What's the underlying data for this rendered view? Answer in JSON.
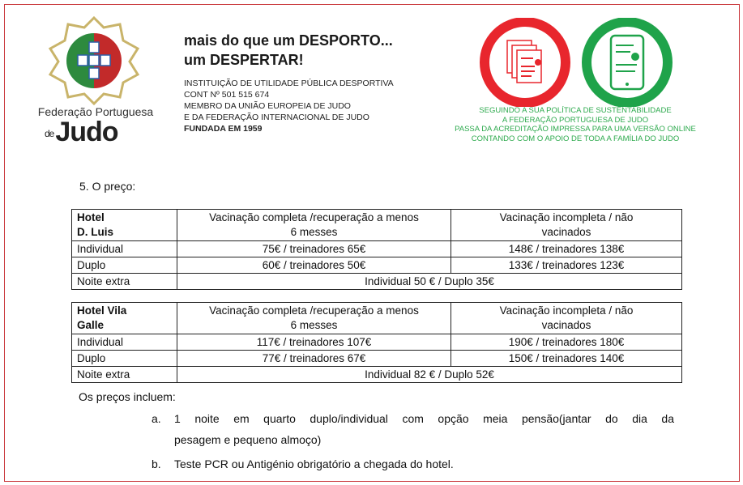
{
  "header": {
    "logo_text_1": "Federação Portuguesa",
    "logo_text_2": "de",
    "logo_text_3": "Judo",
    "slogan": [
      "mais do que um DESPORTO...",
      "um DESPERTAR!"
    ],
    "info": [
      "INSTITUIÇÃO DE UTILIDADE PÚBLICA DESPORTIVA",
      "CONT Nº 501 515 674",
      "MEMBRO DA UNIÃO EUROPEIA DE JUDO",
      "E DA FEDERAÇÃO INTERNACIONAL DE JUDO"
    ],
    "founded": "FUNDADA EM 1959",
    "sustainability": [
      "SEGUINDO A SUA POLÍTICA DE SUSTENTABILIDADE",
      "A FEDERAÇÃO PORTUGUESA DE JUDO",
      "PASSA DA ACREDITAÇÃO IMPRESSA PARA UMA VERSÃO ONLINE",
      "CONTANDO COM O APOIO DE TODA A FAMÍLIA DO JUDO"
    ],
    "colors": {
      "red": "#e8262d",
      "green": "#1fa34a"
    }
  },
  "section_heading": "5.  O preço:",
  "tables": [
    {
      "hotel": [
        "Hotel",
        "D. Luis"
      ],
      "col1": [
        "Vacinação completa /recuperação a menos",
        "6 messes"
      ],
      "col2": [
        "Vacinação incompleta / não",
        "vacinados"
      ],
      "rows": [
        [
          "Individual",
          "75€ / treinadores 65€",
          "148€ / treinadores 138€"
        ],
        [
          "Duplo",
          "60€ / treinadores 50€",
          "133€ / treinadores 123€"
        ]
      ],
      "extra": [
        "Noite extra",
        "Individual 50 € / Duplo 35€"
      ]
    },
    {
      "hotel": [
        "Hotel Vila",
        "Galle"
      ],
      "col1": [
        "Vacinação completa /recuperação a menos",
        "6 messes"
      ],
      "col2": [
        "Vacinação incompleta / não",
        "vacinados"
      ],
      "rows": [
        [
          "Individual",
          "117€ / treinadores 107€",
          "190€ / treinadores 180€"
        ],
        [
          "Duplo",
          "77€ / treinadores 67€",
          "150€ / treinadores 140€"
        ]
      ],
      "extra": [
        "Noite extra",
        "Individual 82 € / Duplo 52€"
      ]
    }
  ],
  "includes_label": "Os preços incluem:",
  "includes": [
    {
      "marker": "a.",
      "text1": "1 noite em quarto duplo/individual com opção meia pensão(jantar do dia da",
      "text2": "pesagem e pequeno almoço)"
    },
    {
      "marker": "b.",
      "text1": "Teste PCR ou Antigénio obrigatório a chegada do hotel."
    }
  ]
}
